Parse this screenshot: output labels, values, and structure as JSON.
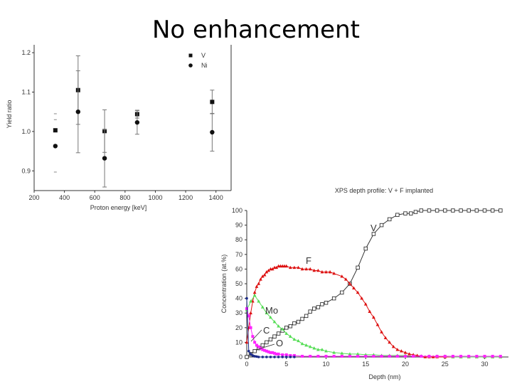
{
  "slide": {
    "title": "No enhancement"
  },
  "chart_data": [
    {
      "type": "scatter",
      "title": "",
      "xlabel": "Proton energy [keV]",
      "ylabel": "Yield ratio",
      "xlim": [
        200,
        1500
      ],
      "ylim": [
        0.85,
        1.22
      ],
      "xticks": [
        "200",
        "400",
        "600",
        "800",
        "1000",
        "1200",
        "1400"
      ],
      "yticks": [
        "0.9",
        "1.0",
        "1.1",
        "1.2"
      ],
      "legend_position": "top-right",
      "series": [
        {
          "name": "V",
          "marker": "square",
          "points": [
            {
              "x": 340,
              "y": 1.003,
              "err": null
            },
            {
              "x": 490,
              "y": 1.105,
              "err": 0.087
            },
            {
              "x": 665,
              "y": 1.001,
              "err": 0.054
            },
            {
              "x": 880,
              "y": 1.044,
              "err": 0.01
            },
            {
              "x": 1375,
              "y": 1.075,
              "err": 0.03
            }
          ]
        },
        {
          "name": "Ni",
          "marker": "circle",
          "points": [
            {
              "x": 340,
              "y": 0.963,
              "err": null
            },
            {
              "x": 490,
              "y": 1.05,
              "err": 0.104
            },
            {
              "x": 665,
              "y": 0.932,
              "err": 0.073
            },
            {
              "x": 880,
              "y": 1.023,
              "err": 0.03
            },
            {
              "x": 1375,
              "y": 0.998,
              "err": 0.048
            }
          ]
        }
      ],
      "extra_ticks": [
        {
          "x": 340,
          "y": 1.045
        },
        {
          "x": 340,
          "y": 1.03
        },
        {
          "x": 340,
          "y": 0.897
        }
      ]
    },
    {
      "type": "line",
      "title": "XPS depth profile: V + F implanted",
      "xlabel": "Depth (nm)",
      "ylabel": "Concentration (at.%)",
      "xlim": [
        0,
        33
      ],
      "ylim": [
        0,
        100
      ],
      "xticks": [
        "0",
        "5",
        "10",
        "15",
        "20",
        "25",
        "30"
      ],
      "yticks": [
        "0",
        "10",
        "20",
        "30",
        "40",
        "50",
        "60",
        "70",
        "80",
        "90",
        "100"
      ],
      "grid": false,
      "annotations": [
        "V",
        "F",
        "Mo",
        "C",
        "O"
      ],
      "series": [
        {
          "name": "V",
          "color": "#333333",
          "marker": "open-square",
          "x": [
            0,
            0.5,
            1,
            1.5,
            2,
            2.5,
            3,
            3.5,
            4,
            4.5,
            5,
            5.5,
            6,
            6.5,
            7,
            7.5,
            8,
            8.5,
            9,
            9.5,
            10,
            11,
            12,
            13,
            14,
            15,
            16,
            17,
            18,
            19,
            20,
            20.7,
            21.3,
            22,
            23,
            24,
            25,
            26,
            27,
            28,
            29,
            30,
            31,
            32
          ],
          "y": [
            0,
            2,
            4,
            6,
            8,
            10,
            12,
            14,
            16,
            18,
            20,
            21,
            23,
            24,
            26,
            28,
            31,
            33,
            34,
            36,
            37,
            40,
            44,
            50,
            61,
            74,
            84,
            90,
            94,
            97,
            98,
            98,
            99,
            100,
            100,
            100,
            100,
            100,
            100,
            100,
            100,
            100,
            100,
            100
          ]
        },
        {
          "name": "F",
          "color": "#dd1111",
          "marker": "triangle",
          "x": [
            0,
            0.25,
            0.5,
            0.75,
            1,
            1.25,
            1.5,
            1.75,
            2,
            2.25,
            2.5,
            2.75,
            3,
            3.25,
            3.5,
            3.75,
            4,
            4.25,
            4.5,
            4.75,
            5,
            5.5,
            6,
            6.5,
            7,
            7.5,
            8,
            8.5,
            9,
            9.5,
            10,
            10.5,
            11,
            12,
            12.5,
            13,
            13.5,
            14,
            14.5,
            15,
            15.5,
            16,
            16.5,
            17,
            17.5,
            18,
            18.5,
            19,
            19.5,
            20,
            20.5,
            21,
            21.5,
            22,
            22.5,
            23,
            23.5,
            24,
            25,
            26,
            27,
            28,
            29,
            30,
            31,
            32
          ],
          "y": [
            10,
            20,
            30,
            38,
            44,
            48,
            50,
            53,
            55,
            56,
            58,
            59,
            60,
            60,
            61,
            61,
            62,
            62,
            62,
            62,
            62,
            61,
            61,
            61,
            60,
            60,
            60,
            59,
            59,
            58,
            58,
            58,
            57,
            55,
            53,
            50,
            47,
            44,
            40,
            36,
            31,
            27,
            22,
            17,
            13,
            10,
            7,
            5,
            4,
            3,
            2,
            1.5,
            1,
            0.5,
            0,
            0,
            0,
            0,
            0,
            0,
            0,
            0,
            0,
            0,
            0,
            0
          ]
        },
        {
          "name": "Mo",
          "color": "#55dd55",
          "marker": "triangle",
          "x": [
            0,
            0.5,
            1,
            1.5,
            2,
            2.5,
            3,
            3.5,
            4,
            4.5,
            5,
            5.5,
            6,
            6.5,
            7,
            7.5,
            8,
            8.5,
            9,
            9.5,
            10,
            11,
            12,
            13,
            14,
            15,
            16,
            17,
            18,
            19,
            20,
            21,
            22,
            23,
            24,
            25,
            26,
            27,
            28,
            29,
            30,
            31,
            32
          ],
          "y": [
            32,
            38,
            42,
            38,
            34,
            30,
            27,
            24,
            21,
            19,
            16,
            14,
            12,
            11,
            9,
            8,
            7,
            6,
            5,
            5,
            4,
            3,
            2.5,
            2,
            2,
            1.5,
            1.5,
            1,
            1,
            1,
            1,
            0.5,
            0.5,
            0.5,
            0.5,
            0.5,
            0,
            0,
            0,
            0,
            0,
            0,
            0
          ]
        },
        {
          "name": "C",
          "color": "#ff22ff",
          "marker": "square",
          "x": [
            0,
            0.25,
            0.5,
            0.75,
            1,
            1.25,
            1.5,
            1.75,
            2,
            2.25,
            2.5,
            2.75,
            3,
            3.25,
            3.5,
            3.75,
            4,
            4.5,
            5,
            5.5,
            6,
            7,
            8,
            9,
            10,
            11,
            12,
            13,
            14,
            15,
            16,
            17,
            18,
            19,
            20,
            21,
            22,
            23,
            24,
            25,
            26,
            27,
            28,
            29,
            30,
            31,
            32
          ],
          "y": [
            33,
            28,
            20,
            14,
            10,
            8,
            7,
            6,
            5,
            4.5,
            4,
            3.5,
            3,
            3,
            2.5,
            2,
            2,
            1.5,
            1.5,
            1,
            1,
            0.5,
            0.5,
            0.5,
            0.5,
            0.5,
            0.5,
            0.5,
            0.5,
            0.5,
            0.5,
            0.5,
            0.5,
            0.5,
            0.5,
            0.5,
            0.5,
            0.5,
            0.5,
            0.5,
            0.5,
            0.5,
            0.5,
            0.5,
            0.5,
            0.5,
            0.5
          ]
        },
        {
          "name": "O",
          "color": "#1a2a88",
          "marker": "circle",
          "x": [
            0,
            0.25,
            0.5,
            0.75,
            1,
            1.25,
            1.5,
            2,
            2.5,
            3,
            3.5,
            4,
            4.5,
            5,
            5.5,
            6
          ],
          "y": [
            40,
            4,
            2,
            1,
            0.5,
            0.3,
            0,
            0,
            0,
            0,
            0,
            0,
            0,
            0,
            0,
            0
          ]
        }
      ]
    }
  ]
}
